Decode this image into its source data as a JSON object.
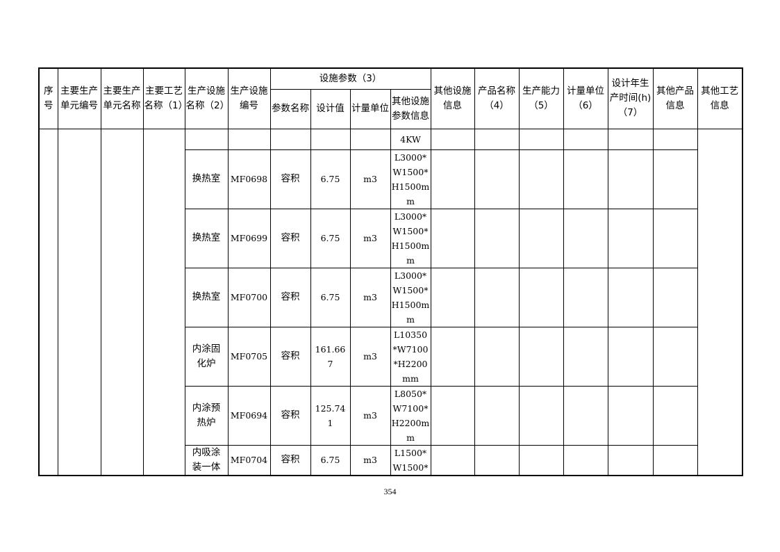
{
  "headers": {
    "seq": "序\n号",
    "unit_code": "主要生产\n单元编号",
    "unit_name": "主要生产\n单元名称",
    "process_name": "主要工艺\n名称（1）",
    "facility_name": "生产设施\n名称（2）",
    "facility_code": "生产设施\n编号",
    "params_group": "设施参数（3）",
    "param_name": "参数名称",
    "design_value": "设计值",
    "param_unit": "计量单位",
    "other_params": "其他设施\n参数信息",
    "other_facility": "其他设施\n信息",
    "product_name": "产品名称\n（4）",
    "capacity": "生产能力\n（5）",
    "capacity_unit": "计量单位\n（6）",
    "design_hours": "设计年生\n产时间(h)\n（7）",
    "other_product": "其他产品\n信息",
    "other_process": "其他工艺\n信息"
  },
  "rows": [
    {
      "facility_name": "",
      "facility_code": "",
      "param_name": "",
      "design_value": "",
      "param_unit": "",
      "other_params": "4KW"
    },
    {
      "facility_name": "换热室",
      "facility_code": "MF0698",
      "param_name": "容积",
      "design_value": "6.75",
      "param_unit": "m3",
      "other_params": "L3000*\nW1500*\nH1500m\nm"
    },
    {
      "facility_name": "换热室",
      "facility_code": "MF0699",
      "param_name": "容积",
      "design_value": "6.75",
      "param_unit": "m3",
      "other_params": "L3000*\nW1500*\nH1500m\nm"
    },
    {
      "facility_name": "换热室",
      "facility_code": "MF0700",
      "param_name": "容积",
      "design_value": "6.75",
      "param_unit": "m3",
      "other_params": "L3000*\nW1500*\nH1500m\nm"
    },
    {
      "facility_name": "内涂固\n化炉",
      "facility_code": "MF0705",
      "param_name": "容积",
      "design_value": "161.66\n7",
      "param_unit": "m3",
      "other_params": "L10350\n*W7100\n*H2200\nmm"
    },
    {
      "facility_name": "内涂预\n热炉",
      "facility_code": "MF0694",
      "param_name": "容积",
      "design_value": "125.74\n1",
      "param_unit": "m3",
      "other_params": "L8050*\nW7100*\nH2200m\nm"
    },
    {
      "facility_name": "内吸涂\n装一体",
      "facility_code": "MF0704",
      "param_name": "容积",
      "design_value": "6.75",
      "param_unit": "m3",
      "other_params": "L1500*\nW1500*"
    }
  ],
  "page_number": "354"
}
